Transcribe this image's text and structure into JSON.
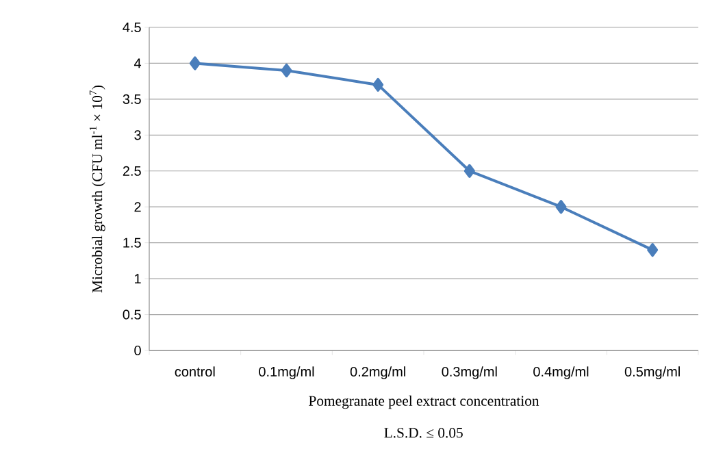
{
  "chart_data": {
    "type": "line",
    "xlabel": "Pomegranate peel extract concentration",
    "ylabel": "Microbial growth (CFU ml$^{-1}$ × 10$^{7}$)",
    "categories": [
      "control",
      "0.1mg/ml",
      "0.2mg/ml",
      "0.3mg/ml",
      "0.4mg/ml",
      "0.5mg/ml"
    ],
    "series": [
      {
        "color": "#4a7ebb",
        "values": [
          4,
          3.9,
          3.7,
          2.5,
          2.0,
          1.4
        ]
      }
    ],
    "ylim": [
      0,
      4.5
    ],
    "yticks": [
      0,
      {
        "value": 0.5,
        "label": "0.5"
      },
      1,
      {
        "value": 1.5,
        "label": "1.5"
      },
      2,
      {
        "value": 2.5,
        "label": "2.5"
      },
      3,
      {
        "value": 3.5,
        "label": "3.5"
      },
      4,
      {
        "value": 4.5,
        "label": "4.5"
      }
    ],
    "grid": "y",
    "marker": "diamond",
    "line_style": "solid",
    "annotations": [
      "L.S.D. ≤ 0.05"
    ]
  }
}
